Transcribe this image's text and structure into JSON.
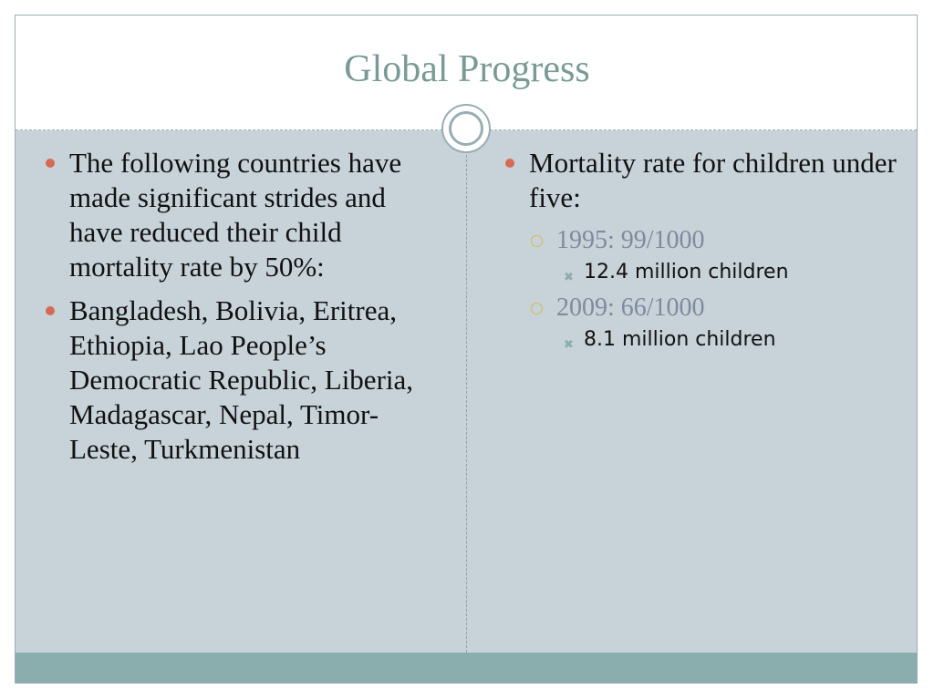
{
  "slide": {
    "title": "Global Progress",
    "left_column": {
      "items": [
        {
          "text": "The following countries have made significant strides and have reduced their child mortality rate by 50%:"
        },
        {
          "text": "Bangladesh, Bolivia, Eritrea, Ethiopia, Lao People’s Democratic Republic, Liberia, Madagascar, Nepal, Timor-Leste, Turkmenistan"
        }
      ]
    },
    "right_column": {
      "heading": "Mortality rate for children under five:",
      "sub_items": [
        {
          "text": "1995: 99/1000",
          "detail": "12.4 million children"
        },
        {
          "text": "2009: 66/1000",
          "detail": "8.1 million children"
        }
      ]
    }
  },
  "colors": {
    "title": "#7a9a96",
    "body_panel": "#c7d2d9",
    "footer_bar": "#8aadad",
    "level1_bullet": "#d66a55",
    "level2_bullet": "#d8b94a",
    "level2_text": "#7f8a9e"
  },
  "icons": {
    "level1_bullet": "filled-circle-bullet-icon",
    "level2_bullet": "hollow-circle-bullet-icon",
    "level3_bullet": "x-mark-bullet-icon",
    "ornament": "double-ring-ornament-icon"
  }
}
